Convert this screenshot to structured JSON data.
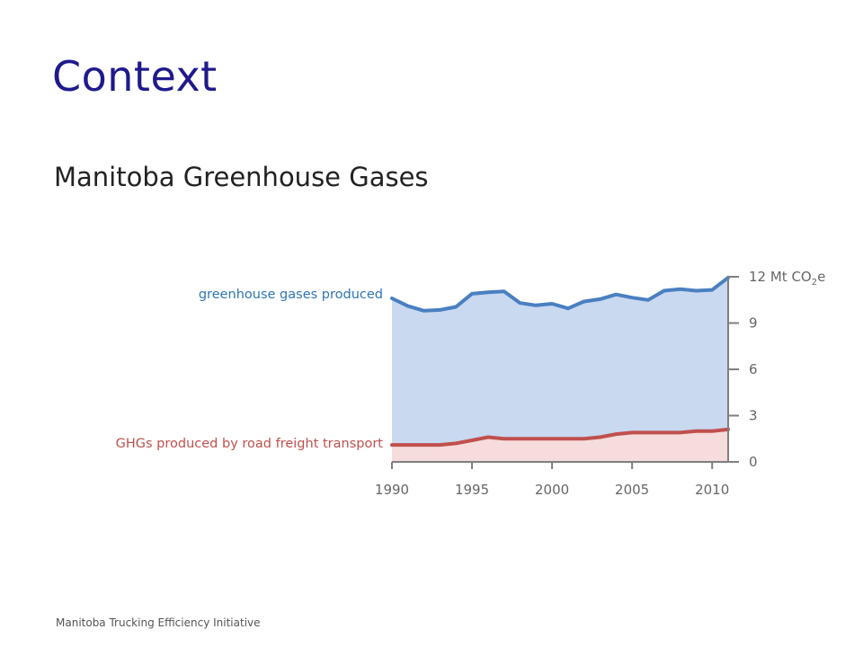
{
  "slide": {
    "title": "Context",
    "subtitle": "Manitoba Greenhouse Gases",
    "footer": "Manitoba Trucking Efficiency Initiative"
  },
  "chart_data": {
    "type": "area",
    "x": [
      1990,
      1991,
      1992,
      1993,
      1994,
      1995,
      1996,
      1997,
      1998,
      1999,
      2000,
      2001,
      2002,
      2003,
      2004,
      2005,
      2006,
      2007,
      2008,
      2009,
      2010,
      2011
    ],
    "series": [
      {
        "name": "greenhouse gases produced",
        "color": "#4a7fc1",
        "fill": "#c8d9f0",
        "values": [
          10.6,
          10.1,
          9.8,
          9.85,
          10.05,
          10.9,
          11.0,
          11.05,
          10.3,
          10.15,
          10.25,
          9.95,
          10.4,
          10.55,
          10.85,
          10.65,
          10.5,
          11.1,
          11.2,
          11.1,
          11.15,
          11.95
        ]
      },
      {
        "name": "GHGs produced by road freight transport",
        "color": "#c0504d",
        "fill": "#f6dcdc",
        "values": [
          1.1,
          1.1,
          1.1,
          1.1,
          1.2,
          1.4,
          1.6,
          1.5,
          1.5,
          1.5,
          1.5,
          1.5,
          1.5,
          1.6,
          1.8,
          1.9,
          1.9,
          1.9,
          1.9,
          2.0,
          2.0,
          2.1
        ]
      }
    ],
    "yunit_main": "12 Mt CO",
    "yunit_sub": "2",
    "yunit_tail": "e",
    "yticks": [
      "0",
      "3",
      "6",
      "9"
    ],
    "ytick_values": [
      0,
      3,
      6,
      9,
      12
    ],
    "xticks": [
      "1990",
      "1995",
      "2000",
      "2005",
      "2010"
    ],
    "xtick_values": [
      1990,
      1995,
      2000,
      2005,
      2010
    ],
    "xlim": [
      1990,
      2011
    ],
    "ylim": [
      0,
      12
    ],
    "grid": false,
    "axis_color": "#7f7f7f"
  }
}
